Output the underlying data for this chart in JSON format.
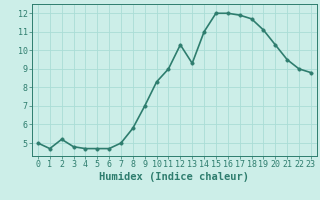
{
  "x": [
    0,
    1,
    2,
    3,
    4,
    5,
    6,
    7,
    8,
    9,
    10,
    11,
    12,
    13,
    14,
    15,
    16,
    17,
    18,
    19,
    20,
    21,
    22,
    23
  ],
  "y": [
    5.0,
    4.7,
    5.2,
    4.8,
    4.7,
    4.7,
    4.7,
    5.0,
    5.8,
    7.0,
    8.3,
    9.0,
    10.3,
    9.3,
    11.0,
    12.0,
    12.0,
    11.9,
    11.7,
    11.1,
    10.3,
    9.5,
    9.0,
    8.8
  ],
  "line_color": "#2e7d6e",
  "marker_color": "#2e7d6e",
  "bg_color": "#cceee8",
  "grid_color": "#aaddd6",
  "xlabel": "Humidex (Indice chaleur)",
  "xlim": [
    -0.5,
    23.5
  ],
  "ylim": [
    4.3,
    12.5
  ],
  "yticks": [
    5,
    6,
    7,
    8,
    9,
    10,
    11,
    12
  ],
  "xticks": [
    0,
    1,
    2,
    3,
    4,
    5,
    6,
    7,
    8,
    9,
    10,
    11,
    12,
    13,
    14,
    15,
    16,
    17,
    18,
    19,
    20,
    21,
    22,
    23
  ],
  "tick_color": "#2e7d6e",
  "label_color": "#2e7d6e",
  "font_size": 6,
  "xlabel_fontsize": 7.5,
  "line_width": 1.2,
  "marker_size": 2.5
}
